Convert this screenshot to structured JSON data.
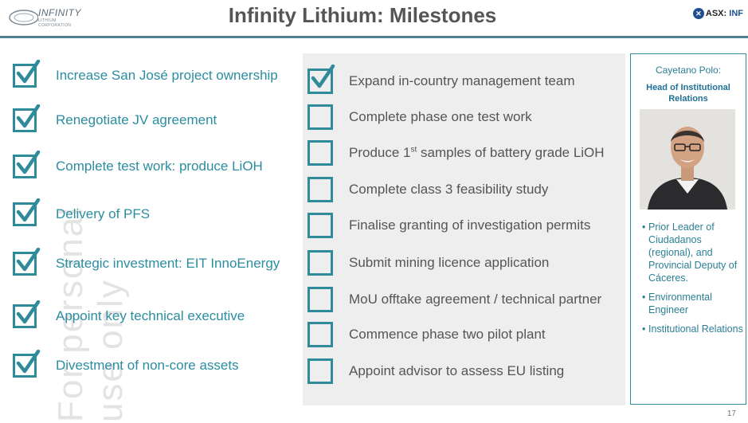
{
  "header": {
    "logo_text": "INFINITY",
    "logo_sub": "LITHIUM CORPORATION",
    "title": "Infinity Lithium: Milestones",
    "asx_label": "ASX",
    "asx_code": "INF"
  },
  "watermark": "For personal use only",
  "completed_milestones": [
    {
      "label": "Increase San José project ownership",
      "checked": true
    },
    {
      "label": "Renegotiate JV agreement",
      "checked": true
    },
    {
      "label": "Complete test work: produce LiOH",
      "checked": true
    },
    {
      "label": "Delivery of PFS",
      "checked": true
    },
    {
      "label": "Strategic investment: EIT InnoEnergy",
      "checked": true
    },
    {
      "label": "Appoint key technical executive",
      "checked": true
    },
    {
      "label": "Divestment of non-core assets",
      "checked": true
    }
  ],
  "upcoming_milestones": [
    {
      "label": "Expand in-country management team",
      "checked": true
    },
    {
      "label": "Complete phase one test work",
      "checked": false
    },
    {
      "label_pre": "Produce 1",
      "label_sup": "st",
      "label_post": " samples of battery grade LiOH",
      "checked": false
    },
    {
      "label": "Complete class 3 feasibility study",
      "checked": false
    },
    {
      "label": "Finalise granting of investigation permits",
      "checked": false
    },
    {
      "label": "Submit mining licence application",
      "checked": false
    },
    {
      "label": "MoU offtake agreement / technical partner",
      "checked": false
    },
    {
      "label": "Commence phase two pilot plant",
      "checked": false
    },
    {
      "label": "Appoint advisor to assess EU listing",
      "checked": false
    }
  ],
  "profile": {
    "name": "Cayetano Polo:",
    "role": "Head of Institutional Relations",
    "bullets": [
      "Prior Leader of Ciudadanos (regional), and Provincial Deputy of Cáceres.",
      "Environmental Engineer",
      "Institutional Relations"
    ]
  },
  "page_number": "17",
  "colors": {
    "accent": "#2f8a9a",
    "label_teal": "#2b8da0",
    "panel_grey": "#eeeeee",
    "title_grey": "#555555"
  }
}
